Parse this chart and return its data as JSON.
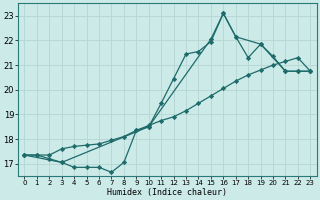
{
  "xlabel": "Humidex (Indice chaleur)",
  "ylabel": "",
  "bg_color": "#cceae8",
  "grid_color": "#b8d8d5",
  "line_color": "#1e6b6b",
  "xlim": [
    -0.5,
    23.5
  ],
  "ylim": [
    16.5,
    23.5
  ],
  "yticks": [
    17,
    18,
    19,
    20,
    21,
    22,
    23
  ],
  "xticks": [
    0,
    1,
    2,
    3,
    4,
    5,
    6,
    7,
    8,
    9,
    10,
    11,
    12,
    13,
    14,
    15,
    16,
    17,
    18,
    19,
    20,
    21,
    22,
    23
  ],
  "line1_x": [
    0,
    1,
    2,
    3,
    4,
    5,
    6,
    7,
    8,
    9,
    10,
    11,
    12,
    13,
    14,
    15,
    16,
    17,
    18,
    19,
    20,
    21,
    22,
    23
  ],
  "line1_y": [
    17.35,
    17.35,
    17.2,
    17.05,
    16.85,
    16.85,
    16.85,
    16.65,
    17.05,
    18.35,
    18.5,
    19.45,
    20.45,
    21.45,
    21.55,
    21.95,
    23.1,
    22.15,
    21.3,
    21.85,
    21.35,
    20.75,
    20.75,
    20.75
  ],
  "line2_x": [
    0,
    1,
    2,
    3,
    4,
    5,
    6,
    7,
    8,
    9,
    10,
    11,
    12,
    13,
    14,
    15,
    16,
    17,
    18,
    19,
    20,
    21,
    22,
    23
  ],
  "line2_y": [
    17.35,
    17.35,
    17.35,
    17.6,
    17.7,
    17.75,
    17.8,
    17.95,
    18.1,
    18.35,
    18.55,
    18.75,
    18.9,
    19.15,
    19.45,
    19.75,
    20.05,
    20.35,
    20.6,
    20.8,
    21.0,
    21.15,
    21.3,
    20.75
  ],
  "line3_x": [
    0,
    3,
    10,
    15,
    16,
    17,
    19,
    21,
    22,
    23
  ],
  "line3_y": [
    17.35,
    17.05,
    18.5,
    22.05,
    23.1,
    22.15,
    21.85,
    20.75,
    20.75,
    20.75
  ]
}
